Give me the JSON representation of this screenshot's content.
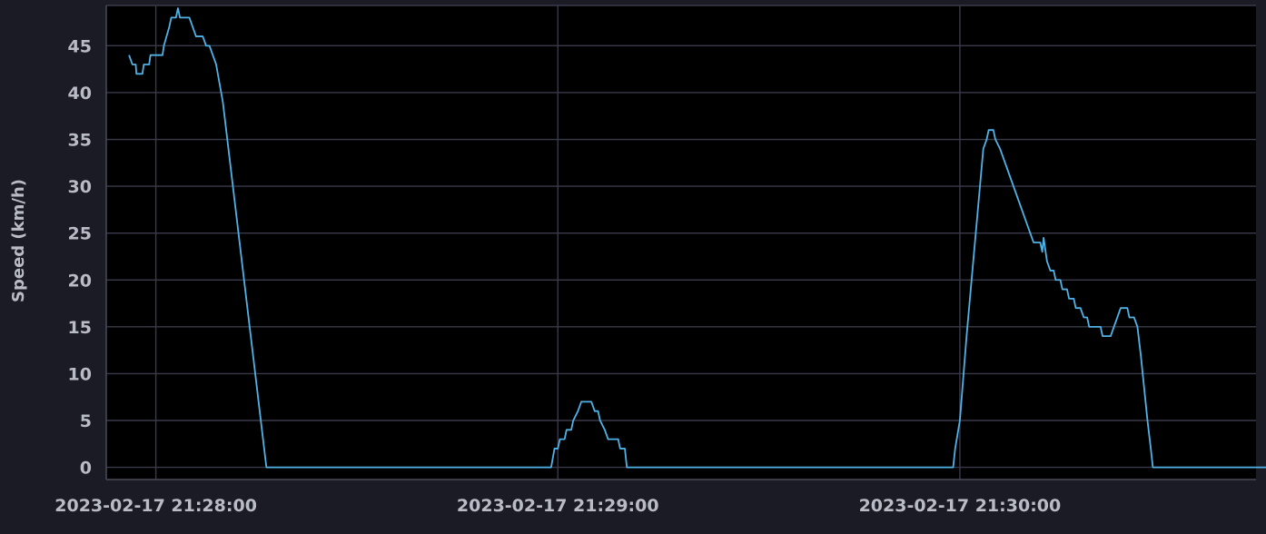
{
  "chart_data": {
    "type": "line",
    "title": "",
    "xlabel": "",
    "ylabel": "Speed (km/h)",
    "x_unit": "seconds",
    "x_range": [
      "2023-02-17 21:27:52.6",
      "2023-02-17 21:30:44.2"
    ],
    "ylim": [
      -1.3,
      49.3
    ],
    "yticks": [
      0,
      5,
      10,
      15,
      20,
      25,
      30,
      35,
      40,
      45
    ],
    "xticks": [
      {
        "time": "2023-02-17 21:28:00",
        "label": "2023-02-17 21:28:00"
      },
      {
        "time": "2023-02-17 21:29:00",
        "label": "2023-02-17 21:29:00"
      },
      {
        "time": "2023-02-17 21:30:00",
        "label": "2023-02-17 21:30:00"
      }
    ],
    "grid": true,
    "legend": "none",
    "colors": {
      "background": "#000000",
      "outer": "#1b1b25",
      "grid": "#3a3b4a",
      "axis": "#4a4b5a",
      "text": "#b9bcc6",
      "line": "#4fb3e8"
    },
    "series": [
      {
        "name": "",
        "x_start": "2023-02-17 21:27:56",
        "points": [
          [
            0,
            44
          ],
          [
            0.5,
            43
          ],
          [
            1,
            43
          ],
          [
            1.1,
            42
          ],
          [
            2,
            42
          ],
          [
            2.2,
            43
          ],
          [
            3,
            43
          ],
          [
            3.2,
            44
          ],
          [
            4,
            44
          ],
          [
            5,
            44
          ],
          [
            5.2,
            45
          ],
          [
            5.6,
            46
          ],
          [
            6,
            47
          ],
          [
            6.3,
            48
          ],
          [
            7,
            48
          ],
          [
            7.3,
            49
          ],
          [
            7.6,
            48
          ],
          [
            9,
            48
          ],
          [
            9.5,
            47
          ],
          [
            10,
            46
          ],
          [
            11,
            46
          ],
          [
            11.5,
            45
          ],
          [
            12,
            45
          ],
          [
            12.5,
            44
          ],
          [
            13,
            43
          ],
          [
            13.5,
            41
          ],
          [
            14,
            39
          ],
          [
            14.5,
            36
          ],
          [
            15,
            33
          ],
          [
            16,
            27
          ],
          [
            17,
            21
          ],
          [
            18,
            15
          ],
          [
            19,
            9
          ],
          [
            20,
            3
          ],
          [
            20.5,
            0
          ],
          [
            30,
            0
          ],
          [
            40,
            0
          ],
          [
            50,
            0
          ],
          [
            60,
            0
          ],
          [
            63,
            0
          ],
          [
            63.5,
            2
          ],
          [
            64,
            2
          ],
          [
            64.3,
            3
          ],
          [
            65,
            3
          ],
          [
            65.3,
            4
          ],
          [
            66,
            4
          ],
          [
            66.3,
            5
          ],
          [
            67,
            6
          ],
          [
            67.5,
            7
          ],
          [
            69,
            7
          ],
          [
            69.5,
            6
          ],
          [
            70,
            6
          ],
          [
            70.3,
            5
          ],
          [
            71,
            4
          ],
          [
            71.5,
            3
          ],
          [
            73,
            3
          ],
          [
            73.3,
            2
          ],
          [
            74,
            2
          ],
          [
            74.3,
            0
          ],
          [
            80,
            0
          ],
          [
            90,
            0
          ],
          [
            100,
            0
          ],
          [
            110,
            0
          ],
          [
            120,
            0
          ],
          [
            123,
            0
          ],
          [
            123.3,
            2
          ],
          [
            124,
            5
          ],
          [
            125,
            14
          ],
          [
            126,
            22
          ],
          [
            127,
            30
          ],
          [
            127.5,
            34
          ],
          [
            128,
            35
          ],
          [
            128.3,
            36
          ],
          [
            129,
            36
          ],
          [
            129.3,
            35
          ],
          [
            130,
            34
          ],
          [
            130.5,
            33
          ],
          [
            131,
            32
          ],
          [
            131.5,
            31
          ],
          [
            132,
            30
          ],
          [
            132.5,
            29
          ],
          [
            133,
            28
          ],
          [
            133.5,
            27
          ],
          [
            134,
            26
          ],
          [
            134.5,
            25
          ],
          [
            135,
            24
          ],
          [
            136,
            24
          ],
          [
            136.3,
            23
          ],
          [
            136.5,
            24.5
          ],
          [
            137,
            22
          ],
          [
            137.5,
            21
          ],
          [
            138,
            21
          ],
          [
            138.3,
            20
          ],
          [
            139,
            20
          ],
          [
            139.3,
            19
          ],
          [
            140,
            19
          ],
          [
            140.3,
            18
          ],
          [
            141,
            18
          ],
          [
            141.3,
            17
          ],
          [
            142,
            17
          ],
          [
            142.5,
            16
          ],
          [
            143,
            16
          ],
          [
            143.3,
            15
          ],
          [
            145,
            15
          ],
          [
            145.3,
            14
          ],
          [
            146,
            14
          ],
          [
            146.5,
            14
          ],
          [
            147,
            15
          ],
          [
            147.5,
            16
          ],
          [
            148,
            17
          ],
          [
            149,
            17
          ],
          [
            149.3,
            16
          ],
          [
            150,
            16
          ],
          [
            150.5,
            15
          ],
          [
            151,
            12
          ],
          [
            152,
            5
          ],
          [
            152.5,
            2
          ],
          [
            152.8,
            0
          ],
          [
            160,
            0
          ],
          [
            170,
            0
          ],
          [
            172,
            0
          ]
        ]
      }
    ]
  }
}
